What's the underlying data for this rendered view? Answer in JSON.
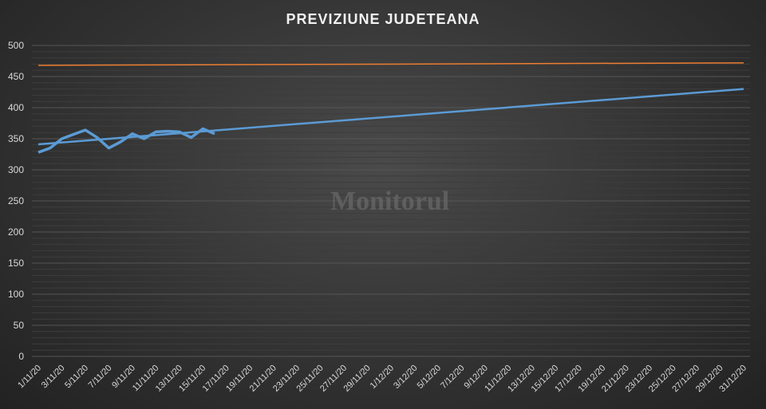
{
  "chart_data": {
    "type": "line",
    "title": "PREVIZIUNE JUDETEANA",
    "watermark": "Monitorul",
    "ylim": [
      0,
      500
    ],
    "yticks": [
      0,
      50,
      100,
      150,
      200,
      250,
      300,
      350,
      400,
      450,
      500
    ],
    "x_start": "1/11/20",
    "x_end": "31/12/20",
    "grid": true,
    "series": [
      {
        "color": "#5b9bd5",
        "x": [
          "1/11/20",
          "2/11/20",
          "3/11/20",
          "4/11/20",
          "5/11/20",
          "6/11/20",
          "7/11/20",
          "8/11/20",
          "9/11/20",
          "10/11/20",
          "11/11/20",
          "12/11/20",
          "13/11/20",
          "14/11/20",
          "15/11/20",
          "16/11/20"
        ],
        "values": [
          328,
          335,
          350,
          357,
          364,
          352,
          335,
          345,
          358,
          350,
          361,
          362,
          361,
          352,
          366,
          358
        ]
      },
      {
        "color": "#5b9bd5",
        "type": "trend",
        "x": [
          "1/11/20",
          "31/12/20"
        ],
        "values": [
          341,
          430
        ]
      },
      {
        "color": "#ed7d31",
        "x": [
          "1/11/20",
          "31/12/20"
        ],
        "values": [
          468,
          472
        ]
      }
    ]
  }
}
